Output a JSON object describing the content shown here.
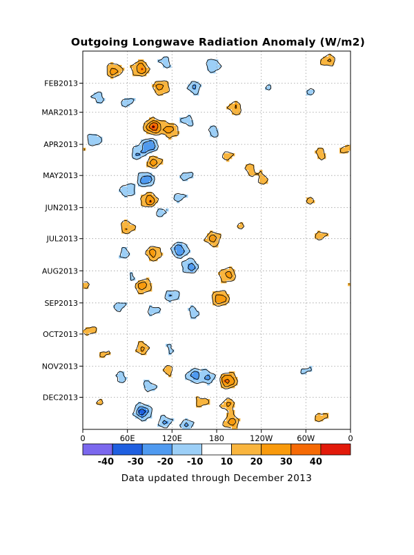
{
  "chart_data": {
    "type": "heatmap",
    "title": "Outgoing Longwave Radiation Anomaly (W/m2)",
    "footer": "Data updated through December 2013",
    "x_axis": {
      "labels": [
        "0",
        "60E",
        "120E",
        "180",
        "120W",
        "60W",
        "0"
      ],
      "range_deg_east": [
        0,
        360
      ],
      "tick_values_deg_east": [
        0,
        60,
        120,
        180,
        240,
        300,
        360
      ]
    },
    "y_axis": {
      "labels": [
        "FEB2013",
        "MAR2013",
        "APR2013",
        "MAY2013",
        "JUN2013",
        "JUL2013",
        "AUG2013",
        "SEP2013",
        "OCT2013",
        "NOV2013",
        "DEC2013"
      ],
      "range": [
        "2013-01-01",
        "2013-12-31"
      ],
      "direction": "time increases downward",
      "grid": "dotted"
    },
    "colorbar": {
      "labels": [
        "-40",
        "-30",
        "-20",
        "-10",
        "10",
        "20",
        "30",
        "40"
      ],
      "bin_colors": [
        "#7b68ee",
        "#1f5fe0",
        "#4f9af0",
        "#9ccff7",
        "#ffffff",
        "#f9b53e",
        "#f99a0c",
        "#f66a05",
        "#e21a0a"
      ]
    },
    "contours": {
      "levels": [
        -40,
        -30,
        -20,
        -10,
        10,
        20,
        30,
        40
      ],
      "line_color": "#000000"
    },
    "features": [
      {
        "lon": 42,
        "time": "2013-01-20",
        "value": 25
      },
      {
        "lon": 78,
        "time": "2013-01-18",
        "value": 30
      },
      {
        "lon": 110,
        "time": "2013-01-12",
        "value": -15
      },
      {
        "lon": 175,
        "time": "2013-01-15",
        "value": -20
      },
      {
        "lon": 105,
        "time": "2013-02-05",
        "value": 25
      },
      {
        "lon": 150,
        "time": "2013-02-05",
        "value": -20
      },
      {
        "lon": 20,
        "time": "2013-02-15",
        "value": -15
      },
      {
        "lon": 60,
        "time": "2013-02-20",
        "value": -15
      },
      {
        "lon": 205,
        "time": "2013-02-25",
        "value": 20
      },
      {
        "lon": 330,
        "time": "2013-01-10",
        "value": 20
      },
      {
        "lon": 305,
        "time": "2013-02-10",
        "value": -12
      },
      {
        "lon": 250,
        "time": "2013-02-05",
        "value": -10
      },
      {
        "lon": 95,
        "time": "2013-03-15",
        "value": 40
      },
      {
        "lon": 118,
        "time": "2013-03-18",
        "value": 25
      },
      {
        "lon": 15,
        "time": "2013-03-28",
        "value": -20
      },
      {
        "lon": 140,
        "time": "2013-03-10",
        "value": -15
      },
      {
        "lon": 175,
        "time": "2013-03-20",
        "value": -15
      },
      {
        "lon": 90,
        "time": "2013-04-02",
        "value": -30
      },
      {
        "lon": 75,
        "time": "2013-04-10",
        "value": -20
      },
      {
        "lon": 95,
        "time": "2013-04-18",
        "value": 25
      },
      {
        "lon": 195,
        "time": "2013-04-12",
        "value": 15
      },
      {
        "lon": 225,
        "time": "2013-04-25",
        "value": 15
      },
      {
        "lon": 242,
        "time": "2013-05-05",
        "value": 15
      },
      {
        "lon": 320,
        "time": "2013-04-10",
        "value": 15
      },
      {
        "lon": 355,
        "time": "2013-04-05",
        "value": 15
      },
      {
        "lon": 85,
        "time": "2013-05-05",
        "value": -30
      },
      {
        "lon": 140,
        "time": "2013-05-02",
        "value": -15
      },
      {
        "lon": 60,
        "time": "2013-05-15",
        "value": -20
      },
      {
        "lon": 90,
        "time": "2013-05-25",
        "value": 30
      },
      {
        "lon": 130,
        "time": "2013-05-22",
        "value": -15
      },
      {
        "lon": 105,
        "time": "2013-06-05",
        "value": -15
      },
      {
        "lon": 305,
        "time": "2013-05-25",
        "value": 12
      },
      {
        "lon": 60,
        "time": "2013-06-20",
        "value": 20
      },
      {
        "lon": 210,
        "time": "2013-06-18",
        "value": 12
      },
      {
        "lon": 320,
        "time": "2013-06-28",
        "value": 15
      },
      {
        "lon": 130,
        "time": "2013-07-12",
        "value": -30
      },
      {
        "lon": 145,
        "time": "2013-07-28",
        "value": -25
      },
      {
        "lon": 95,
        "time": "2013-07-15",
        "value": 25
      },
      {
        "lon": 175,
        "time": "2013-07-01",
        "value": 25
      },
      {
        "lon": 55,
        "time": "2013-07-15",
        "value": -15
      },
      {
        "lon": 195,
        "time": "2013-08-05",
        "value": 25
      },
      {
        "lon": 185,
        "time": "2013-08-28",
        "value": 30
      },
      {
        "lon": 70,
        "time": "2013-08-08",
        "value": -15
      },
      {
        "lon": 80,
        "time": "2013-08-15",
        "value": 30
      },
      {
        "lon": 120,
        "time": "2013-08-25",
        "value": -20
      },
      {
        "lon": 5,
        "time": "2013-08-15",
        "value": 12
      },
      {
        "lon": 50,
        "time": "2013-09-05",
        "value": -15
      },
      {
        "lon": 95,
        "time": "2013-09-08",
        "value": -15
      },
      {
        "lon": 150,
        "time": "2013-09-10",
        "value": -15
      },
      {
        "lon": 10,
        "time": "2013-09-28",
        "value": 15
      },
      {
        "lon": 80,
        "time": "2013-10-15",
        "value": 20
      },
      {
        "lon": 30,
        "time": "2013-10-20",
        "value": 12
      },
      {
        "lon": 120,
        "time": "2013-10-15",
        "value": -12
      },
      {
        "lon": 115,
        "time": "2013-11-05",
        "value": 15
      },
      {
        "lon": 150,
        "time": "2013-11-10",
        "value": -25
      },
      {
        "lon": 170,
        "time": "2013-11-12",
        "value": -20
      },
      {
        "lon": 195,
        "time": "2013-11-15",
        "value": 35
      },
      {
        "lon": 50,
        "time": "2013-11-12",
        "value": -15
      },
      {
        "lon": 90,
        "time": "2013-11-20",
        "value": -15
      },
      {
        "lon": 300,
        "time": "2013-11-05",
        "value": -12
      },
      {
        "lon": 20,
        "time": "2013-12-05",
        "value": 12
      },
      {
        "lon": 195,
        "time": "2013-12-08",
        "value": 20
      },
      {
        "lon": 200,
        "time": "2013-12-25",
        "value": 25
      },
      {
        "lon": 80,
        "time": "2013-12-15",
        "value": -35
      },
      {
        "lon": 110,
        "time": "2013-12-25",
        "value": -20
      },
      {
        "lon": 140,
        "time": "2013-12-28",
        "value": -20
      },
      {
        "lon": 160,
        "time": "2013-12-05",
        "value": 15
      },
      {
        "lon": 320,
        "time": "2013-12-20",
        "value": 15
      }
    ]
  }
}
